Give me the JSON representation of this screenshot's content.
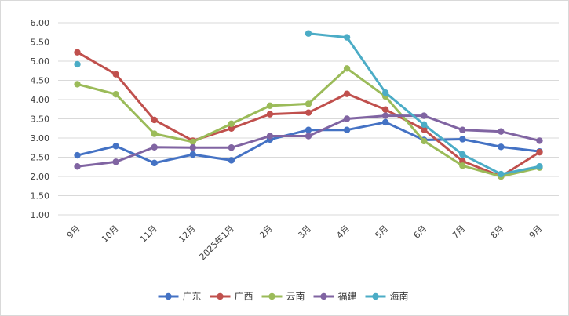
{
  "chart_data": {
    "type": "line",
    "title": "",
    "xlabel": "",
    "ylabel": "",
    "ylim": [
      1.0,
      6.0
    ],
    "ytick_step": 0.5,
    "yticks": [
      "1.00",
      "1.50",
      "2.00",
      "2.50",
      "3.00",
      "3.50",
      "4.00",
      "4.50",
      "5.00",
      "5.50",
      "6.00"
    ],
    "grid": "horizontal",
    "legend_position": "bottom",
    "categories": [
      "9月",
      "10月",
      "11月",
      "12月",
      "2025年1月",
      "2月",
      "3月",
      "4月",
      "5月",
      "6月",
      "7月",
      "8月",
      "9月"
    ],
    "series": [
      {
        "name": "广东",
        "color": "#4472c4",
        "values": [
          2.55,
          2.79,
          2.35,
          2.57,
          2.42,
          2.96,
          3.21,
          3.21,
          3.41,
          2.95,
          2.97,
          2.77,
          2.65
        ]
      },
      {
        "name": "广西",
        "color": "#c0504d",
        "values": [
          5.23,
          4.66,
          3.47,
          2.93,
          3.25,
          3.62,
          3.66,
          4.15,
          3.74,
          3.22,
          2.4,
          2.0,
          2.63
        ]
      },
      {
        "name": "云南",
        "color": "#9bbb59",
        "values": [
          4.4,
          4.14,
          3.11,
          2.9,
          3.37,
          3.84,
          3.89,
          4.81,
          4.08,
          2.92,
          2.28,
          2.0,
          2.23
        ]
      },
      {
        "name": "福建",
        "color": "#8064a2",
        "values": [
          2.26,
          2.38,
          2.76,
          2.75,
          2.75,
          3.05,
          3.05,
          3.5,
          3.58,
          3.58,
          3.21,
          3.17,
          2.93
        ]
      },
      {
        "name": "海南",
        "color": "#4bacc6",
        "values": [
          4.92,
          null,
          null,
          null,
          null,
          null,
          5.72,
          5.62,
          4.18,
          3.35,
          2.57,
          2.06,
          2.26
        ]
      }
    ]
  }
}
